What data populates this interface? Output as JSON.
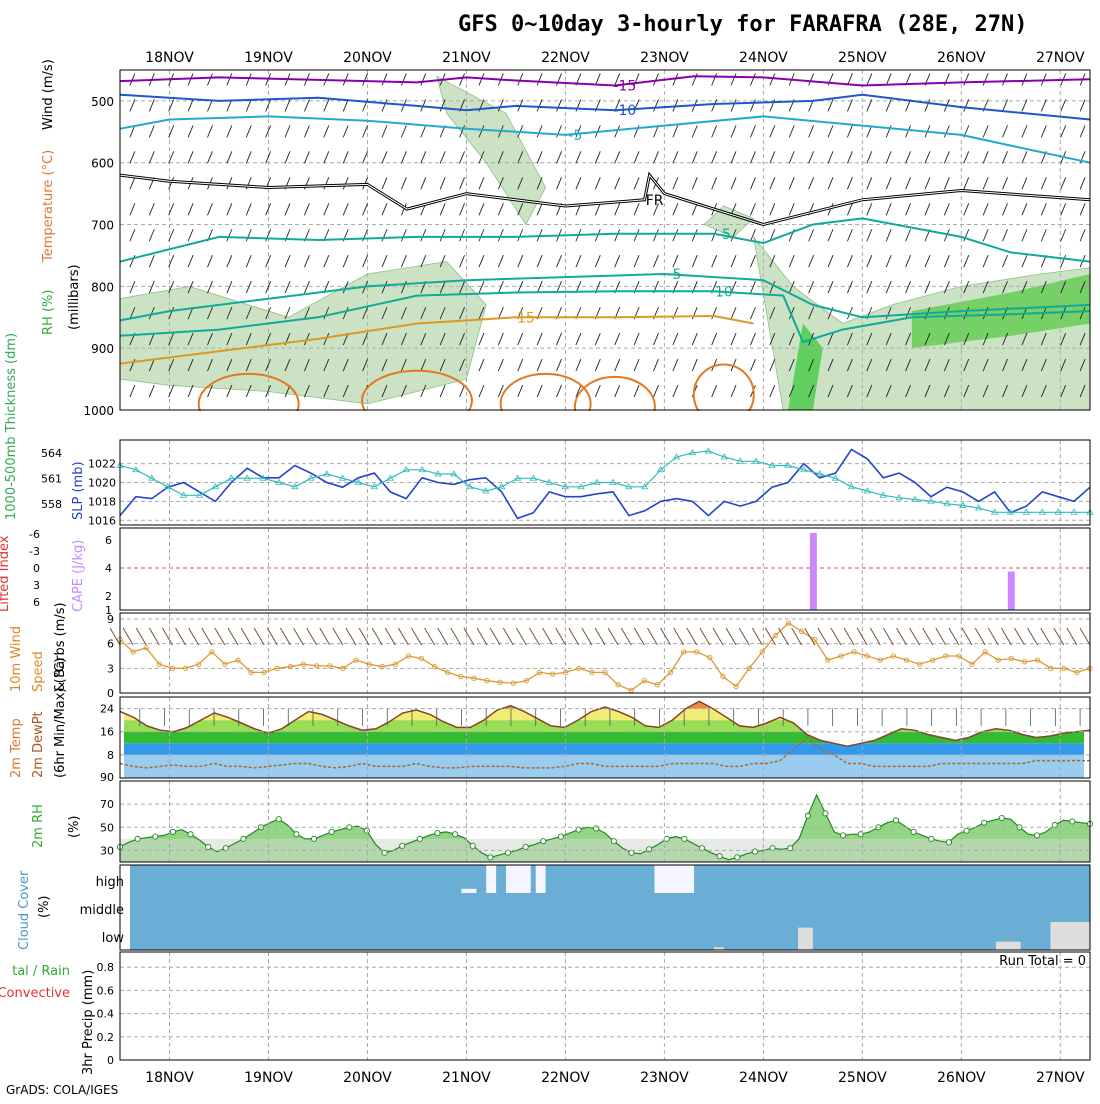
{
  "title": "GFS 0~10day 3-hourly for FARAFRA (28E, 27N)",
  "footer": "GrADS: COLA/IGES",
  "colors": {
    "grid": "#aaaaaa",
    "temp_cold": "#8800aa",
    "temp_blue": "#2255cc",
    "temp_cyan": "#22aacc",
    "temp_teal": "#11aa99",
    "temp_orange": "#dd9922",
    "slp": "#2244cc",
    "thickness": "#33bbbb",
    "cape": "#cc88ff",
    "wind_speed": "#dd9933",
    "barb": "#7a5230",
    "rh_fill": "#77cc66",
    "cloud": "#6aaed6",
    "clear": "#f5f5ff",
    "low_cloud": "#dddddd"
  },
  "chart_data": [
    {
      "type": "line",
      "panel": "upper-air",
      "title": "Temperature (°C) Wind (m/s) RH (%) (millibars)",
      "ylabel_parts": [
        "RH (%)",
        "Temperature (°C)",
        "Wind (m/s)",
        "(millibars)"
      ],
      "x_labels": [
        "18NOV",
        "19NOV",
        "20NOV",
        "21NOV",
        "22NOV",
        "23NOV",
        "24NOV",
        "25NOV",
        "26NOV",
        "27NOV"
      ],
      "x_range_days": [
        17.5,
        27.3
      ],
      "y_ticks": [
        500,
        600,
        700,
        800,
        900,
        1000
      ],
      "y_range": [
        450,
        1000
      ],
      "isotherms": [
        {
          "label": "-15",
          "color_key": "temp_cold",
          "points": [
            [
              17.5,
              468
            ],
            [
              18.5,
              462
            ],
            [
              19.5,
              466
            ],
            [
              20.5,
              470
            ],
            [
              21.0,
              462
            ],
            [
              21.5,
              467
            ],
            [
              22.5,
              475
            ],
            [
              23.3,
              460
            ],
            [
              24.0,
              462
            ],
            [
              25.0,
              475
            ],
            [
              26.0,
              470
            ],
            [
              27.3,
              465
            ]
          ]
        },
        {
          "label": "-10",
          "color_key": "temp_blue",
          "points": [
            [
              17.5,
              490
            ],
            [
              18.5,
              500
            ],
            [
              19.5,
              495
            ],
            [
              20.5,
              508
            ],
            [
              21.0,
              515
            ],
            [
              21.5,
              508
            ],
            [
              22.5,
              515
            ],
            [
              23.5,
              505
            ],
            [
              24.5,
              500
            ],
            [
              25.0,
              490
            ],
            [
              26.0,
              510
            ],
            [
              27.3,
              530
            ]
          ]
        },
        {
          "label": "-5",
          "color_key": "temp_cyan",
          "points": [
            [
              17.5,
              545
            ],
            [
              18.0,
              530
            ],
            [
              19.0,
              525
            ],
            [
              20.0,
              532
            ],
            [
              21.0,
              545
            ],
            [
              22.0,
              555
            ],
            [
              23.0,
              540
            ],
            [
              24.0,
              525
            ],
            [
              25.0,
              540
            ],
            [
              26.0,
              555
            ],
            [
              27.3,
              600
            ]
          ]
        },
        {
          "label": "FR",
          "color_key": "temp_teal_black",
          "points": [
            [
              17.5,
              620
            ],
            [
              18.0,
              630
            ],
            [
              19.0,
              640
            ],
            [
              20.0,
              635
            ],
            [
              20.4,
              675
            ],
            [
              21.0,
              650
            ],
            [
              22.0,
              670
            ],
            [
              22.8,
              660
            ],
            [
              22.85,
              620
            ],
            [
              23.0,
              650
            ],
            [
              24.0,
              700
            ],
            [
              25.0,
              660
            ],
            [
              26.0,
              645
            ],
            [
              27.3,
              660
            ]
          ]
        },
        {
          "label": "-5",
          "color_key": "temp_teal",
          "points": [
            [
              17.5,
              760
            ],
            [
              18.5,
              720
            ],
            [
              19.5,
              725
            ],
            [
              20.5,
              720
            ],
            [
              21.5,
              720
            ],
            [
              22.5,
              715
            ],
            [
              23.5,
              715
            ],
            [
              24.0,
              730
            ],
            [
              24.5,
              700
            ],
            [
              25.0,
              690
            ],
            [
              26.0,
              720
            ],
            [
              26.5,
              745
            ],
            [
              27.3,
              760
            ]
          ]
        },
        {
          "label": "-5",
          "color_key": "temp_teal",
          "points": [
            [
              17.5,
              855
            ],
            [
              18.0,
              840
            ],
            [
              19.0,
              820
            ],
            [
              20.0,
              800
            ],
            [
              21.0,
              790
            ],
            [
              22.0,
              785
            ],
            [
              23.0,
              780
            ],
            [
              24.0,
              790
            ],
            [
              24.5,
              830
            ],
            [
              25.0,
              850
            ],
            [
              26.0,
              840
            ],
            [
              27.3,
              830
            ]
          ]
        },
        {
          "label": "10",
          "color_key": "temp_teal",
          "points": [
            [
              17.5,
              880
            ],
            [
              18.5,
              870
            ],
            [
              19.5,
              850
            ],
            [
              20.5,
              815
            ],
            [
              21.5,
              810
            ],
            [
              22.5,
              808
            ],
            [
              23.5,
              808
            ],
            [
              24.2,
              815
            ],
            [
              24.4,
              890
            ],
            [
              24.8,
              870
            ],
            [
              25.5,
              850
            ],
            [
              26.5,
              845
            ],
            [
              27.3,
              840
            ]
          ]
        },
        {
          "label": "15",
          "color_key": "temp_orange",
          "points": [
            [
              17.5,
              925
            ],
            [
              18.5,
              905
            ],
            [
              19.5,
              885
            ],
            [
              20.5,
              860
            ],
            [
              21.5,
              850
            ],
            [
              22.5,
              850
            ],
            [
              23.5,
              848
            ],
            [
              23.9,
              860
            ]
          ]
        }
      ]
    },
    {
      "type": "line",
      "panel": "slp-thickness",
      "ylabel_left": "1000-500mb Thickness (dm)",
      "ylabel_right": "SLP (mb)",
      "y_ticks_left": [
        558,
        561,
        564
      ],
      "y_ticks_right": [
        1016,
        1018,
        1020,
        1022
      ],
      "y_range_slp": [
        1015.5,
        1024.5
      ],
      "series": [
        {
          "name": "SLP",
          "color_key": "slp",
          "values": [
            1016.5,
            1018.5,
            1018.3,
            1019.5,
            1020,
            1019,
            1018,
            1020,
            1021.5,
            1020.5,
            1020.5,
            1021.8,
            1021,
            1020,
            1019.5,
            1020.5,
            1021,
            1019,
            1018.3,
            1020.5,
            1020,
            1019.8,
            1020.3,
            1020.5,
            1019,
            1016.2,
            1016.8,
            1019,
            1018.5,
            1018.5,
            1018.8,
            1019,
            1016.5,
            1017,
            1018,
            1018.3,
            1018,
            1016.5,
            1018,
            1017.5,
            1018,
            1019.5,
            1020,
            1022,
            1020.5,
            1021,
            1023.5,
            1022.5,
            1020.5,
            1021,
            1020,
            1018.5,
            1019.5,
            1019,
            1018,
            1019,
            1016.8,
            1017.5,
            1019,
            1018.5,
            1018,
            1019.5
          ]
        },
        {
          "name": "Thickness",
          "color_key": "thickness",
          "values": [
            562.5,
            562,
            561,
            560,
            559,
            559,
            560,
            561,
            561,
            561,
            560.5,
            560,
            561,
            561.5,
            561,
            560.5,
            560,
            561,
            562,
            562,
            561.5,
            561.5,
            560,
            559.5,
            560,
            561,
            561,
            560.5,
            560,
            560,
            560.5,
            560.5,
            560,
            560,
            562,
            563.5,
            564,
            564.2,
            563.5,
            563,
            563,
            562.5,
            562.5,
            562,
            561.5,
            561,
            560,
            559.5,
            559,
            558.7,
            558.5,
            558.3,
            558,
            557.8,
            557.5,
            557,
            557,
            557,
            557,
            557,
            557,
            557
          ]
        }
      ]
    },
    {
      "type": "bar",
      "panel": "cape-lifted-index",
      "ylabel_left": "Lifted Index",
      "ylabel_right": "CAPE (J/kg)",
      "y_ticks_left": [
        "-6",
        "-3",
        "0",
        "3",
        "6"
      ],
      "y_ticks_right": [
        "1",
        "2",
        "4",
        "6"
      ],
      "bars": [
        {
          "day": 24.5,
          "value": 6
        },
        {
          "day": 26.5,
          "value": 3
        }
      ]
    },
    {
      "type": "line",
      "panel": "wind",
      "ylabel": "10m Wind Speed & Barbs (m/s)",
      "y_ticks": [
        0,
        3,
        6,
        9
      ],
      "y_range": [
        0,
        9
      ],
      "series": [
        {
          "name": "10m Wind Speed",
          "color_key": "wind_speed",
          "values": [
            6.5,
            5,
            5.5,
            3.5,
            3,
            3,
            3.5,
            5,
            3.5,
            4,
            2.5,
            2.5,
            3,
            3.2,
            3.5,
            3.3,
            3.3,
            3,
            4,
            3.5,
            3.2,
            3.5,
            4.5,
            4.2,
            3.2,
            2.5,
            2,
            1.8,
            1.5,
            1.3,
            1.2,
            1.5,
            2.5,
            2.3,
            2.5,
            3,
            2.5,
            2.5,
            1,
            0.3,
            1.5,
            1,
            2.5,
            5,
            5,
            4.3,
            2,
            0.8,
            3,
            5,
            7,
            8.5,
            7.5,
            6.5,
            4,
            4.5,
            5,
            4.5,
            4,
            4.5,
            4,
            3.5,
            4,
            4.5,
            4.5,
            3.5,
            5,
            4,
            4.2,
            3.8,
            4,
            3,
            3,
            2.5,
            3
          ]
        }
      ]
    },
    {
      "type": "area",
      "panel": "temperature",
      "ylabel": "2m Temp 2m DewPt (6hr Min/Max) (°C)",
      "y_ticks": [
        8,
        16,
        24
      ],
      "y_range": [
        0,
        28
      ],
      "series": [
        {
          "name": "2m Temp",
          "values": [
            23,
            21,
            18,
            16.5,
            16,
            17.5,
            20,
            22.5,
            21,
            19,
            17,
            15.5,
            17,
            20,
            23,
            22,
            20,
            18,
            16.5,
            17,
            19.5,
            22.5,
            23.5,
            22,
            19.5,
            17.5,
            17.5,
            20,
            23.5,
            25,
            23,
            20.5,
            18,
            17.5,
            20,
            23,
            24.5,
            23,
            21,
            18,
            17.5,
            20,
            24,
            26.5,
            24,
            21,
            18,
            17.5,
            19,
            21,
            19,
            15,
            13,
            12,
            11,
            12,
            13,
            15,
            17,
            16.5,
            15,
            14,
            13,
            14,
            16,
            17,
            16.5,
            15,
            14,
            14.5,
            15.5,
            16,
            16.5
          ]
        },
        {
          "name": "2m DewPt",
          "values": [
            5,
            4,
            3.5,
            4,
            4.5,
            4,
            4,
            5,
            4,
            4,
            3.5,
            4,
            4.5,
            5,
            5,
            4,
            3.5,
            4,
            5,
            4,
            4,
            4,
            5,
            4,
            3.5,
            3.5,
            4,
            4,
            4,
            4,
            3.5,
            3.5,
            3.5,
            4,
            5,
            5,
            4,
            4,
            4,
            4,
            4,
            5,
            5,
            5,
            5,
            4,
            4,
            5,
            5,
            6,
            10,
            14,
            10,
            8,
            5,
            5,
            4,
            4,
            4,
            4,
            4,
            5,
            5,
            5,
            5,
            5,
            5,
            5,
            6,
            6,
            6,
            6,
            6
          ]
        }
      ]
    },
    {
      "type": "area",
      "panel": "rh",
      "ylabel": "2m RH (%)",
      "y_ticks": [
        30,
        50,
        70
      ],
      "y_range": [
        20,
        90
      ],
      "series": [
        {
          "name": "2m RH",
          "values": [
            33,
            37,
            40,
            41,
            42,
            43,
            46,
            48,
            44,
            39,
            33,
            29,
            32,
            36,
            40,
            45,
            50,
            54,
            57,
            52,
            44,
            40,
            40,
            43,
            46,
            48,
            50,
            51,
            47,
            35,
            28,
            30,
            34,
            37,
            40,
            43,
            45,
            46,
            44,
            41,
            34,
            28,
            24,
            26,
            28,
            30,
            33,
            35,
            38,
            40,
            42,
            45,
            48,
            50,
            49,
            45,
            38,
            32,
            28,
            27,
            31,
            35,
            40,
            42,
            40,
            36,
            32,
            28,
            25,
            22,
            24,
            27,
            29,
            30,
            32,
            31,
            32,
            40,
            60,
            78,
            62,
            46,
            43,
            44,
            44,
            46,
            50,
            54,
            56,
            51,
            46,
            43,
            40,
            38,
            37,
            44,
            47,
            50,
            54,
            56,
            58,
            57,
            50,
            44,
            43,
            46,
            52,
            56,
            55,
            54,
            53
          ]
        }
      ]
    },
    {
      "type": "heatmap",
      "panel": "cloud-cover",
      "ylabel": "Cloud Cover (%)",
      "levels": [
        "high",
        "middle",
        "low"
      ],
      "clear_blocks": [
        {
          "level": "high",
          "start": 20.95,
          "end": 21.1,
          "fraction": 0.15
        },
        {
          "level": "high",
          "start": 21.2,
          "end": 21.3,
          "fraction": 1.0
        },
        {
          "level": "high",
          "start": 21.4,
          "end": 21.65,
          "fraction": 1.0
        },
        {
          "level": "high",
          "start": 21.7,
          "end": 21.8,
          "fraction": 1.0
        },
        {
          "level": "high",
          "start": 22.9,
          "end": 23.3,
          "fraction": 1.0
        }
      ],
      "low_blocks": [
        {
          "start": 23.5,
          "end": 23.6,
          "fraction": 0.1
        },
        {
          "start": 24.35,
          "end": 24.5,
          "fraction": 0.8
        },
        {
          "start": 26.35,
          "end": 26.6,
          "fraction": 0.3
        },
        {
          "start": 26.9,
          "end": 27.3,
          "fraction": 1.0
        }
      ]
    },
    {
      "type": "bar",
      "panel": "precip",
      "ylabel": "3hr Precip (mm)",
      "legend_left": [
        "tal / Rain",
        "Convective"
      ],
      "y_ticks": [
        "0",
        "0.2",
        "0.4",
        "0.6",
        "0.8"
      ],
      "run_total": "Run Total = 0",
      "bars": []
    }
  ]
}
